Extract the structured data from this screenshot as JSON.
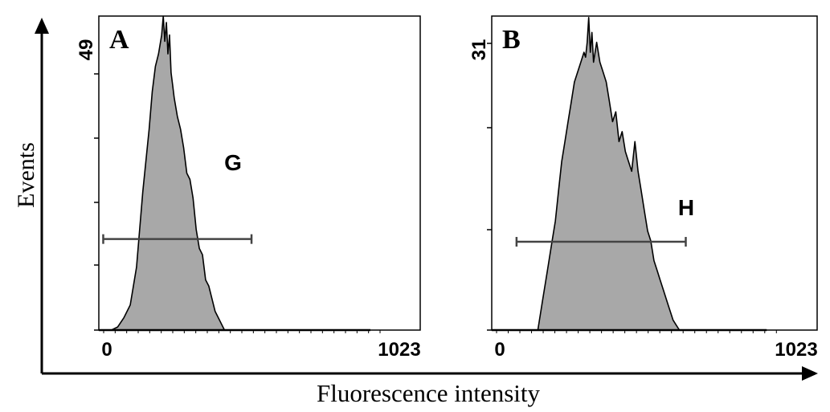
{
  "figure": {
    "y_axis_label": "Events",
    "x_axis_label": "Fluorescence intensity"
  },
  "chart_data": [
    {
      "type": "area",
      "panel_label": "A",
      "x_tick_labels": [
        "0",
        "1023"
      ],
      "y_tick_labels": [
        "49"
      ],
      "xlim": [
        0,
        1023
      ],
      "ylim": [
        0,
        49
      ],
      "fill_color": "#a8a8a8",
      "gate": {
        "label": "G",
        "x_start": 14,
        "x_end": 486,
        "y": 14.5
      },
      "histogram": {
        "x": [
          40,
          60,
          80,
          100,
          120,
          140,
          160,
          170,
          180,
          190,
          200,
          205,
          210,
          215,
          220,
          225,
          230,
          235,
          240,
          250,
          260,
          270,
          280,
          290,
          300,
          310,
          320,
          330,
          340,
          350,
          360,
          370,
          380,
          390,
          400
        ],
        "y": [
          0,
          0.5,
          2,
          4,
          10,
          22,
          32,
          38,
          42,
          44,
          47,
          50,
          46,
          49,
          44,
          47,
          41,
          39,
          37,
          34,
          32,
          29,
          25,
          24,
          21,
          16,
          13,
          12,
          8,
          7,
          5,
          3,
          2,
          1,
          0
        ]
      }
    },
    {
      "type": "area",
      "panel_label": "B",
      "x_tick_labels": [
        "0",
        "1023"
      ],
      "y_tick_labels": [
        "31"
      ],
      "xlim": [
        0,
        1023
      ],
      "ylim": [
        0,
        31
      ],
      "fill_color": "#a8a8a8",
      "gate": {
        "label": "H",
        "x_start": 78,
        "x_end": 610,
        "y": 8.9
      },
      "histogram": {
        "x": [
          145,
          160,
          175,
          190,
          200,
          210,
          220,
          230,
          240,
          250,
          260,
          270,
          280,
          290,
          295,
          300,
          305,
          310,
          315,
          320,
          330,
          340,
          350,
          360,
          370,
          380,
          390,
          400,
          410,
          420,
          430,
          440,
          450,
          460,
          470,
          480,
          490,
          500,
          510,
          520,
          530,
          540,
          550,
          560,
          570,
          580,
          590
        ],
        "y": [
          0,
          3,
          6,
          9,
          11,
          14,
          17,
          19,
          21,
          23,
          25,
          26,
          27,
          28,
          27.5,
          29,
          31.5,
          28,
          30,
          27,
          29,
          27,
          26,
          25,
          23,
          21,
          22,
          19,
          20,
          18,
          17,
          16,
          19,
          16,
          14,
          12,
          10,
          9,
          7,
          6,
          5,
          4,
          3,
          2,
          1,
          0.5,
          0
        ]
      }
    }
  ]
}
